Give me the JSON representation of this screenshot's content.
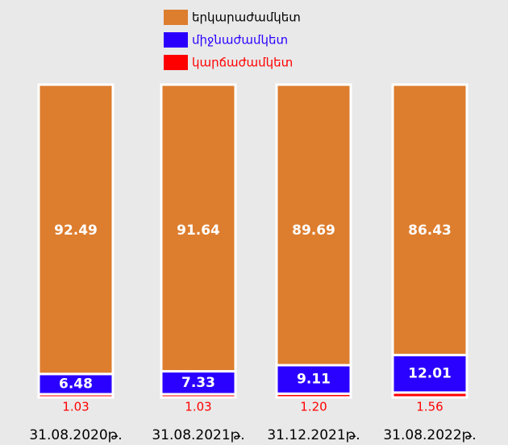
{
  "chart_data": {
    "type": "stacked_bar",
    "categories": [
      "31.08.2020թ.",
      "31.08.2021թ.",
      "31.12.2021թ.",
      "31.08.2022թ."
    ],
    "series": [
      {
        "name": "կարճաժամկետ",
        "color": "#ff0000",
        "values": [
          1.03,
          1.03,
          1.2,
          1.56
        ],
        "value_labels": [
          "1.03",
          "1.03",
          "1.20",
          "1.56"
        ]
      },
      {
        "name": "միջնաժամկետ",
        "color": "#2a00ff",
        "values": [
          6.48,
          7.33,
          9.11,
          12.01
        ]
      },
      {
        "name": "երկարաժամկետ",
        "color": "#dd7d2e",
        "values": [
          92.49,
          91.64,
          89.69,
          86.43
        ]
      }
    ],
    "ylim": [
      0,
      100
    ]
  }
}
